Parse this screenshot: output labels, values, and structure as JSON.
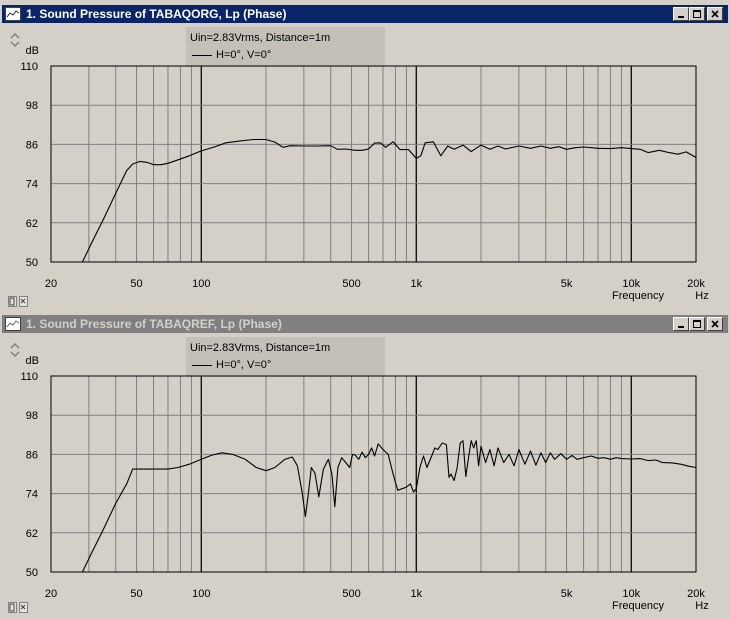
{
  "windows": [
    {
      "title": "1. Sound Pressure of TABAQORG, Lp (Phase)",
      "active": true,
      "annotation": {
        "line1": "Uin=2.83Vrms, Distance=1m",
        "legend": "H=0°, V=0°"
      }
    },
    {
      "title": "1. Sound Pressure of TABAQREF, Lp (Phase)",
      "active": false,
      "annotation": {
        "line1": "Uin=2.83Vrms, Distance=1m",
        "legend": "H=0°, V=0°"
      }
    }
  ],
  "chart_data": [
    {
      "type": "line",
      "title": "1. Sound Pressure of TABAQORG, Lp (Phase)",
      "ylabel": "dB",
      "xlabel": "Frequency",
      "x_unit": "Hz",
      "x_scale": "log",
      "xlim": [
        20,
        20000
      ],
      "ylim": [
        50,
        110
      ],
      "y_ticks": [
        "110",
        "98",
        "86",
        "74",
        "62",
        "50"
      ],
      "x_ticks": [
        "20",
        "50",
        "100",
        "500",
        "1k",
        "5k",
        "10k",
        "20k"
      ],
      "grid": true,
      "series": [
        {
          "name": "H=0°, V=0°",
          "x": [
            20,
            22,
            25,
            28,
            31,
            35,
            40,
            45,
            48,
            52,
            56,
            60,
            65,
            70,
            78,
            88,
            100,
            115,
            130,
            150,
            175,
            200,
            220,
            240,
            260,
            300,
            350,
            400,
            430,
            470,
            520,
            560,
            600,
            640,
            680,
            720,
            780,
            840,
            920,
            1000,
            1050,
            1100,
            1200,
            1300,
            1400,
            1500,
            1650,
            1800,
            2000,
            2200,
            2400,
            2600,
            3000,
            3400,
            3800,
            4200,
            4600,
            5000,
            5500,
            6000,
            7000,
            8000,
            9000,
            10000,
            11000,
            12000,
            13500,
            15000,
            16500,
            18000,
            20000
          ],
          "values": [
            50,
            50,
            50,
            50,
            56,
            63,
            71,
            78,
            80,
            80.8,
            80.5,
            79.8,
            79.8,
            80.2,
            81.3,
            82.5,
            84,
            85.2,
            86.5,
            87,
            87.5,
            87.5,
            86.7,
            85.1,
            85.6,
            85.5,
            85.5,
            85.6,
            84.5,
            84.6,
            84.2,
            84.2,
            84.6,
            86.4,
            86.5,
            85.1,
            86.8,
            84.4,
            84.4,
            81.7,
            82.5,
            86.5,
            86.8,
            82.5,
            85.5,
            84.5,
            85.8,
            83.8,
            85.8,
            84.5,
            85.5,
            84.6,
            85.5,
            84.8,
            85.5,
            84.8,
            85.3,
            84.5,
            85,
            85.2,
            84.8,
            84.7,
            85,
            84.7,
            84.5,
            83.5,
            84.2,
            83.5,
            83,
            83.7,
            82
          ]
        }
      ]
    },
    {
      "type": "line",
      "title": "1. Sound Pressure of TABAQREF, Lp (Phase)",
      "ylabel": "dB",
      "xlabel": "Frequency",
      "x_unit": "Hz",
      "x_scale": "log",
      "xlim": [
        20,
        20000
      ],
      "ylim": [
        50,
        110
      ],
      "y_ticks": [
        "110",
        "98",
        "86",
        "74",
        "62",
        "50"
      ],
      "x_ticks": [
        "20",
        "50",
        "100",
        "500",
        "1k",
        "5k",
        "10k",
        "20k"
      ],
      "grid": true,
      "series": [
        {
          "name": "H=0°, V=0°",
          "x": [
            20,
            22,
            25,
            28,
            31,
            35,
            40,
            45,
            48,
            52,
            56,
            60,
            65,
            70,
            78,
            88,
            100,
            112,
            125,
            140,
            160,
            180,
            200,
            220,
            245,
            265,
            280,
            295,
            305,
            315,
            325,
            338,
            352,
            370,
            390,
            405,
            418,
            432,
            450,
            470,
            490,
            505,
            520,
            540,
            560,
            580,
            600,
            620,
            640,
            665,
            700,
            740,
            780,
            820,
            860,
            900,
            940,
            970,
            1000,
            1040,
            1080,
            1120,
            1180,
            1220,
            1260,
            1320,
            1380,
            1420,
            1450,
            1500,
            1550,
            1600,
            1650,
            1700,
            1750,
            1800,
            1850,
            1900,
            1950,
            2000,
            2100,
            2200,
            2300,
            2400,
            2550,
            2700,
            2850,
            3000,
            3200,
            3400,
            3600,
            3800,
            4000,
            4200,
            4400,
            4700,
            5000,
            5300,
            5600,
            6000,
            6500,
            7000,
            7500,
            8000,
            8500,
            9000,
            10000,
            11000,
            12000,
            13000,
            14000,
            15500,
            17000,
            18500,
            20000
          ],
          "values": [
            50,
            50,
            50,
            50,
            56,
            63,
            71,
            77,
            81.5,
            81.5,
            81.5,
            81.5,
            81.5,
            81.5,
            82,
            83,
            84.5,
            85.8,
            86.5,
            86,
            84.5,
            82,
            81,
            82,
            84.5,
            85.2,
            82.5,
            74,
            67,
            74,
            82,
            80.2,
            73,
            81.5,
            84.5,
            80,
            70,
            82,
            85,
            83.5,
            82,
            86,
            85.8,
            84.5,
            86.7,
            85,
            86,
            88,
            85.5,
            89.2,
            87.5,
            86,
            80,
            75,
            75.5,
            76,
            77,
            74.5,
            75.5,
            82,
            85.5,
            82,
            85.5,
            88,
            87.5,
            89.5,
            89,
            79,
            80,
            78,
            82,
            89.5,
            90.2,
            79.2,
            85,
            90.2,
            88,
            90.2,
            82.5,
            88.5,
            83.5,
            87.5,
            82.5,
            88,
            83.5,
            86,
            82.5,
            87.5,
            83,
            87,
            82.7,
            86.5,
            83.5,
            86.5,
            84.5,
            86.2,
            84.5,
            85.7,
            84.5,
            85,
            85.5,
            84.8,
            85,
            84.5,
            85,
            84.7,
            84.6,
            84.7,
            84.1,
            84.3,
            83.5,
            83.4,
            83,
            82.4,
            82
          ]
        }
      ]
    }
  ]
}
